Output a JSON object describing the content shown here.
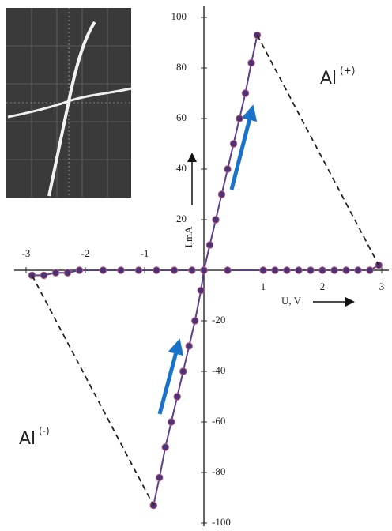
{
  "chart_data": {
    "type": "line",
    "xlabel": "U, V",
    "ylabel": "I,mA",
    "xlim": [
      -3,
      3
    ],
    "ylim": [
      -100,
      100
    ],
    "xticks": [
      -3,
      -2,
      -1,
      1,
      2,
      3
    ],
    "yticks": [
      100,
      80,
      60,
      40,
      20,
      -20,
      -40,
      -60,
      -80,
      -100
    ],
    "annotations": [
      {
        "text": "Al",
        "sup": "(+)"
      },
      {
        "text": "Al",
        "sup": "(-)"
      }
    ],
    "series": [
      {
        "color": "#5a3f8e",
        "markers": true,
        "dashed": false,
        "x": [
          0,
          0.1,
          0.2,
          0.3,
          0.4,
          0.5,
          0.6,
          0.7,
          0.8,
          0.9
        ],
        "values": [
          0,
          10,
          20,
          30,
          40,
          50,
          60,
          70,
          82,
          93
        ]
      },
      {
        "color": "#5a3f8e",
        "markers": true,
        "dashed": false,
        "x": [
          0.4,
          1.0,
          1.2,
          1.4,
          1.6,
          1.8,
          2.0,
          2.2,
          2.4,
          2.6,
          2.8,
          2.95
        ],
        "values": [
          0,
          0,
          0,
          0,
          0,
          0,
          0,
          0,
          0,
          0,
          0,
          2
        ]
      },
      {
        "color": "#5a3f8e",
        "markers": true,
        "dashed": false,
        "x": [
          -2.9,
          -2.7,
          -2.5,
          -2.3,
          -2.1,
          -1.7,
          -1.4,
          -1.1,
          -0.8,
          -0.5,
          -0.2
        ],
        "values": [
          -2,
          -2,
          -1,
          -1,
          0,
          0,
          0,
          0,
          0,
          0,
          0
        ]
      },
      {
        "color": "#5a3f8e",
        "markers": true,
        "dashed": false,
        "x": [
          -0.85,
          -0.75,
          -0.65,
          -0.55,
          -0.45,
          -0.35,
          -0.25,
          -0.15,
          -0.05,
          0
        ],
        "values": [
          -93,
          -82,
          -70,
          -60,
          -50,
          -40,
          -30,
          -20,
          -8,
          0
        ]
      },
      {
        "color": "#222222",
        "markers": false,
        "dashed": true,
        "x": [
          0.9,
          2.95
        ],
        "values": [
          93,
          2
        ]
      },
      {
        "color": "#222222",
        "markers": false,
        "dashed": true,
        "x": [
          -2.9,
          -0.85
        ],
        "values": [
          -2,
          -93
        ]
      }
    ]
  }
}
